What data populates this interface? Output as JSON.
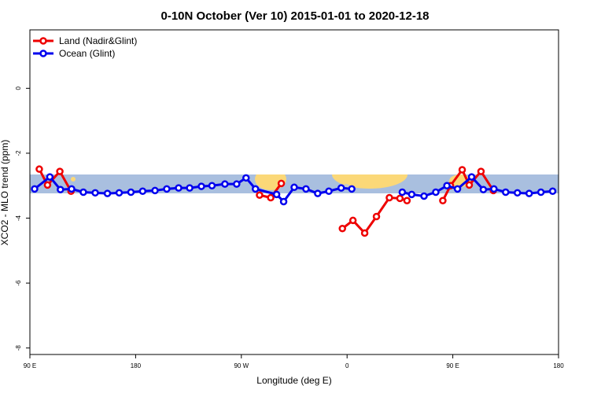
{
  "chart_data": {
    "type": "line",
    "title": "0-10N October (Ver 10)   2015-01-01 to 2020-12-18",
    "x_label": "Longitude (deg E)",
    "y_label": "XCO2 - MLO trend (ppm)",
    "xlim": [
      90,
      540
    ],
    "ylim": [
      -8.2,
      1.8
    ],
    "xticks": [
      {
        "value": 90,
        "label": "90 E"
      },
      180,
      {
        "value": 270,
        "label": "90 W"
      },
      {
        "value": 360,
        "label": "0"
      },
      {
        "value": 450,
        "label": "90 E"
      },
      {
        "value": 540,
        "label": "180"
      }
    ],
    "yticks": [
      0,
      -2,
      -4,
      -6,
      -8
    ],
    "legend": "top-left",
    "series": [
      {
        "name": "Land (Nadir&Glint)",
        "color": "#ee0000",
        "x": [
          98,
          105,
          115.5,
          125,
          null,
          285.5,
          295,
          304,
          null,
          356,
          365,
          375,
          385,
          396,
          405,
          411,
          null,
          441.5,
          448,
          458,
          464,
          474,
          484.5
        ],
        "values": [
          -2.49,
          -2.98,
          -2.56,
          -3.17,
          null,
          -3.29,
          -3.37,
          -2.93,
          null,
          -4.32,
          -4.07,
          -4.46,
          -3.95,
          -3.37,
          -3.39,
          -3.46,
          null,
          -3.46,
          -3.0,
          -2.51,
          -2.98,
          -2.56,
          -3.15
        ]
      },
      {
        "name": "Ocean (Glint)",
        "color": "#0000ee",
        "x": [
          94,
          107,
          116,
          125.5,
          135.5,
          145.6,
          156,
          166,
          176,
          186,
          196.5,
          206.5,
          216.6,
          226,
          236,
          245,
          256,
          266,
          274,
          282,
          300,
          306,
          315,
          325,
          335,
          344.5,
          355,
          364,
          null,
          407,
          415,
          425.5,
          435.5,
          445,
          454,
          466,
          476,
          485,
          495,
          505,
          515,
          525,
          535
        ],
        "values": [
          -3.1,
          -2.73,
          -3.12,
          -3.1,
          -3.2,
          -3.22,
          -3.24,
          -3.22,
          -3.2,
          -3.17,
          -3.15,
          -3.1,
          -3.07,
          -3.07,
          -3.02,
          -3.0,
          -2.95,
          -2.95,
          -2.76,
          -3.1,
          -3.27,
          -3.49,
          -3.05,
          -3.1,
          -3.24,
          -3.17,
          -3.07,
          -3.1,
          null,
          -3.2,
          -3.27,
          -3.32,
          -3.2,
          -3.0,
          -3.1,
          -2.73,
          -3.12,
          -3.1,
          -3.2,
          -3.22,
          -3.24,
          -3.2,
          -3.17
        ]
      }
    ]
  }
}
